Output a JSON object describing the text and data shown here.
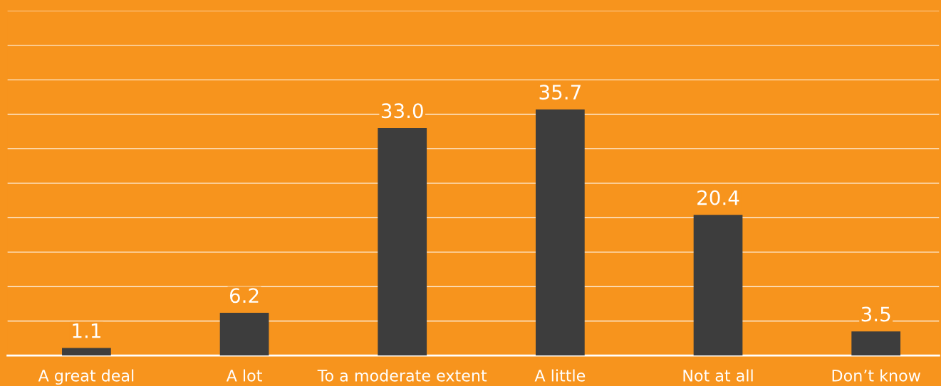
{
  "chart_data": {
    "type": "bar",
    "categories": [
      "A great deal",
      "A lot",
      "To a moderate extent",
      "A little",
      "Not at all",
      "Don’t know"
    ],
    "values": [
      1.1,
      6.2,
      33.0,
      35.7,
      20.4,
      3.5
    ],
    "color": "#3d3d3d",
    "ylim": [
      0,
      50
    ],
    "yticks": [
      {
        "value": 5,
        "label": null
      },
      {
        "value": 10,
        "label": null
      },
      {
        "value": 15,
        "label": null
      },
      {
        "value": 20,
        "label": null
      },
      {
        "value": 25,
        "label": null
      },
      {
        "value": 30,
        "label": null
      },
      {
        "value": 35,
        "label": null
      },
      {
        "value": 40,
        "label": null
      },
      {
        "value": 45,
        "label": null
      },
      {
        "value": 50,
        "label": null
      }
    ],
    "grid": "y",
    "value_labels": [
      "1.1",
      "6.2",
      "33.0",
      "35.7",
      "20.4",
      "3.5"
    ],
    "tick_labels": "x"
  }
}
